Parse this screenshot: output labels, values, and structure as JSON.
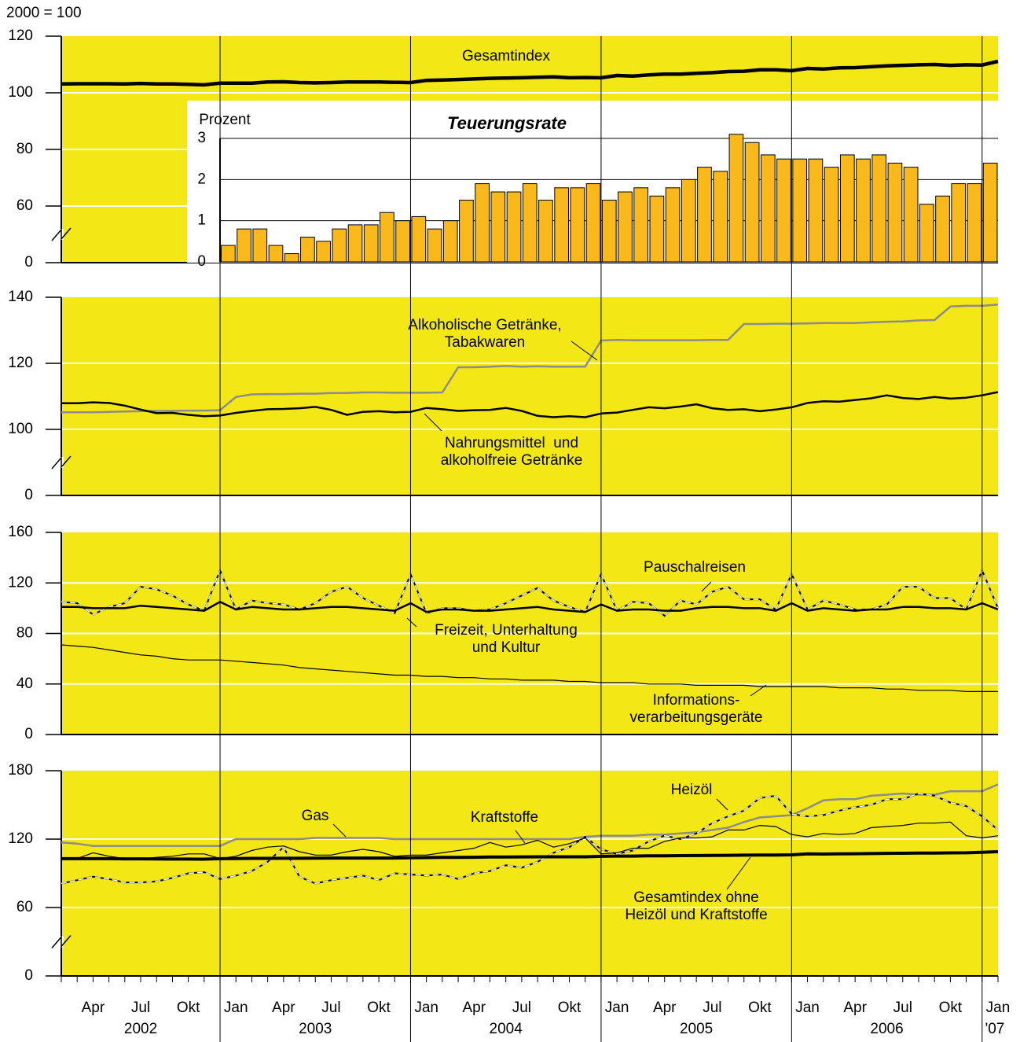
{
  "base_label": "2000 = 100",
  "x_axis": {
    "categories": [
      null,
      null,
      "Apr",
      null,
      null,
      "Jul",
      null,
      null,
      "Okt",
      null,
      null,
      "Jan",
      null,
      null,
      "Apr",
      null,
      null,
      "Jul",
      null,
      null,
      "Okt",
      null,
      null,
      "Jan",
      null,
      null,
      "Apr",
      null,
      null,
      "Jul",
      null,
      null,
      "Okt",
      null,
      null,
      "Jan",
      null,
      null,
      "Apr",
      null,
      null,
      "Jul",
      null,
      null,
      "Okt",
      null,
      null,
      "Jan",
      null,
      null,
      "Apr",
      null,
      null,
      "Jul",
      null,
      null,
      "Okt",
      null,
      null,
      "Jan"
    ],
    "years": [
      "2002",
      "2003",
      "2004",
      "2005",
      "2006",
      "'07"
    ]
  },
  "chart_data": [
    {
      "type": "line",
      "ylim": [
        60,
        120
      ],
      "yticks": [
        0,
        60,
        80,
        100,
        120
      ],
      "axis_break": true,
      "grid": true,
      "background": "#f3e716",
      "series": [
        {
          "name": "Gesamtindex",
          "color": "#000000",
          "width": 4.5,
          "style": "solid",
          "values": [
            103.1,
            103.2,
            103.2,
            103.2,
            103.1,
            103.3,
            103.1,
            103.1,
            103.0,
            102.8,
            103.4,
            103.4,
            103.4,
            103.8,
            103.9,
            103.6,
            103.5,
            103.6,
            103.8,
            103.8,
            103.8,
            103.7,
            103.6,
            104.4,
            104.5,
            104.7,
            104.9,
            105.1,
            105.2,
            105.3,
            105.5,
            105.6,
            105.3,
            105.4,
            105.3,
            106.1,
            105.9,
            106.3,
            106.6,
            106.6,
            106.9,
            107.1,
            107.5,
            107.6,
            108.1,
            108.1,
            107.8,
            108.6,
            108.4,
            108.8,
            108.9,
            109.2,
            109.5,
            109.7,
            109.9,
            110.0,
            109.7,
            109.9,
            109.8,
            111.1
          ]
        }
      ]
    },
    {
      "type": "bar",
      "title": "Teuerungsrate",
      "ylabel": "Prozent",
      "ylim": [
        0,
        3
      ],
      "yticks": [
        0,
        1,
        2,
        3
      ],
      "grid": true,
      "color": "#f9b91b",
      "values": [
        null,
        null,
        null,
        null,
        null,
        null,
        null,
        null,
        null,
        null,
        null,
        0.4,
        0.8,
        0.8,
        0.4,
        0.2,
        0.6,
        0.5,
        0.8,
        0.9,
        0.9,
        1.2,
        1.0,
        1.1,
        0.8,
        1.0,
        1.5,
        1.9,
        1.7,
        1.7,
        1.9,
        1.5,
        1.8,
        1.8,
        1.9,
        1.5,
        1.7,
        1.8,
        1.6,
        1.8,
        2.0,
        2.3,
        2.2,
        3.1,
        2.9,
        2.6,
        2.5,
        2.5,
        2.5,
        2.3,
        2.6,
        2.5,
        2.6,
        2.4,
        2.3,
        1.4,
        1.6,
        1.9,
        1.9,
        2.4
      ]
    },
    {
      "type": "line",
      "ylim": [
        100,
        140
      ],
      "yticks": [
        0,
        100,
        120,
        140
      ],
      "axis_break": true,
      "grid": true,
      "background": "#f3e716",
      "series": [
        {
          "name": "Alkoholische Getränke,\nTabakwaren",
          "color": "#8c8c8c",
          "width": 2.5,
          "style": "solid",
          "values": [
            105.2,
            105.2,
            105.2,
            105.3,
            105.4,
            105.5,
            105.6,
            105.6,
            105.7,
            105.7,
            105.8,
            109.8,
            110.6,
            110.7,
            110.7,
            110.8,
            110.8,
            111.0,
            111.0,
            111.2,
            111.2,
            111.1,
            111.1,
            111.1,
            111.2,
            118.8,
            118.8,
            119.0,
            119.2,
            119.0,
            119.1,
            119.0,
            119.0,
            119.0,
            126.9,
            127.1,
            127.0,
            127.0,
            127.0,
            127.0,
            127.0,
            127.1,
            127.1,
            131.9,
            131.9,
            132.0,
            132.0,
            132.1,
            132.2,
            132.2,
            132.2,
            132.4,
            132.6,
            132.7,
            133.0,
            133.1,
            137.2,
            137.4,
            137.4,
            137.8
          ]
        },
        {
          "name": "Nahrungsmittel  und\nalkoholfreie Getränke",
          "color": "#000000",
          "width": 2.5,
          "style": "solid",
          "values": [
            107.9,
            107.9,
            108.2,
            108.0,
            107.2,
            106.0,
            104.9,
            105.0,
            104.4,
            104.0,
            104.2,
            105.0,
            105.6,
            106.1,
            106.2,
            106.4,
            106.8,
            105.9,
            104.4,
            105.3,
            105.5,
            105.2,
            105.3,
            106.5,
            106.1,
            105.6,
            105.8,
            105.9,
            106.5,
            105.6,
            104.1,
            103.7,
            104.0,
            103.7,
            104.8,
            105.1,
            105.9,
            106.7,
            106.4,
            106.9,
            107.6,
            106.4,
            105.9,
            106.1,
            105.5,
            106.0,
            106.7,
            108.0,
            108.5,
            108.4,
            108.9,
            109.4,
            110.3,
            109.5,
            109.2,
            109.8,
            109.3,
            109.6,
            110.3,
            111.3
          ]
        }
      ]
    },
    {
      "type": "line",
      "ylim": [
        0,
        160
      ],
      "yticks": [
        0,
        40,
        80,
        120,
        160
      ],
      "axis_break": false,
      "grid": true,
      "background": "#f3e716",
      "series": [
        {
          "name": "Pauschalreisen",
          "color": "#ffffff",
          "width": 1.5,
          "style": "dashed",
          "values": [
            105,
            104,
            95,
            101,
            104,
            117,
            115,
            110,
            103,
            98,
            130,
            99,
            106,
            104,
            103,
            99,
            104,
            113,
            117,
            108,
            102,
            96,
            127,
            96,
            100,
            100,
            98,
            99,
            104,
            110,
            116,
            106,
            101,
            97,
            127,
            98,
            105,
            104,
            94,
            106,
            103,
            113,
            117,
            107,
            107,
            99,
            127,
            99,
            106,
            103,
            99,
            99,
            103,
            117,
            117,
            108,
            108,
            99,
            130,
            100
          ]
        },
        {
          "name": "Freizeit, Unterhaltung\nund Kultur",
          "color": "#000000",
          "width": 2.5,
          "style": "solid",
          "values": [
            101,
            101,
            100,
            100,
            100,
            102,
            101,
            100,
            99,
            98,
            105,
            99,
            101,
            100,
            99,
            99,
            100,
            101,
            101,
            100,
            99,
            98,
            104,
            97,
            99,
            99,
            98,
            98,
            99,
            100,
            101,
            99,
            98,
            97,
            103,
            98,
            99,
            99,
            98,
            98,
            100,
            101,
            101,
            100,
            100,
            98,
            104,
            98,
            100,
            99,
            98,
            99,
            99,
            101,
            101,
            100,
            100,
            99,
            104,
            99
          ]
        },
        {
          "name": "Informations-\nverarbeitungsgeräte",
          "color": "#000000",
          "width": 1.2,
          "style": "solid",
          "values": [
            71,
            70,
            69,
            67,
            65,
            63,
            62,
            60,
            59,
            59,
            59,
            58,
            57,
            56,
            55,
            53,
            52,
            51,
            50,
            49,
            48,
            47,
            47,
            46,
            46,
            45,
            45,
            44,
            44,
            43,
            43,
            43,
            42,
            42,
            41,
            41,
            41,
            40,
            40,
            40,
            39,
            39,
            39,
            39,
            38,
            38,
            38,
            38,
            38,
            37,
            37,
            37,
            36,
            36,
            35,
            35,
            35,
            34,
            34,
            34
          ]
        }
      ]
    },
    {
      "type": "line",
      "ylim": [
        60,
        180
      ],
      "yticks": [
        0,
        60,
        120,
        180
      ],
      "axis_break": true,
      "grid": true,
      "background": "#f3e716",
      "series": [
        {
          "name": "Gas",
          "color": "#8c8c8c",
          "width": 2.5,
          "style": "solid",
          "values": [
            117,
            116,
            114,
            114,
            114,
            114,
            114,
            114,
            114,
            114,
            114,
            120,
            120,
            120,
            120,
            120,
            121,
            121,
            121,
            121,
            121,
            120,
            120,
            120,
            120,
            120,
            120,
            120,
            120,
            120,
            120,
            120,
            120,
            122,
            123,
            123,
            123,
            124,
            124,
            125,
            126,
            128,
            130,
            135,
            139,
            140,
            141,
            147,
            154,
            155,
            155,
            158,
            159,
            160,
            159,
            159,
            162,
            162,
            162,
            168
          ]
        },
        {
          "name": "Heizöl",
          "color": "#ffffff",
          "width": 1.5,
          "style": "dashed",
          "values": [
            81,
            84,
            87,
            85,
            82,
            82,
            83,
            86,
            90,
            91,
            85,
            88,
            92,
            100,
            113,
            87,
            81,
            84,
            86,
            88,
            84,
            90,
            89,
            88,
            89,
            85,
            90,
            92,
            97,
            95,
            100,
            108,
            113,
            122,
            111,
            107,
            110,
            118,
            123,
            120,
            125,
            134,
            140,
            145,
            156,
            158,
            142,
            140,
            141,
            145,
            148,
            150,
            155,
            155,
            160,
            158,
            152,
            149,
            140,
            128
          ]
        },
        {
          "name": "Kraftstoffe",
          "color": "#000000",
          "width": 1.2,
          "style": "solid",
          "values": [
            102,
            103,
            108,
            105,
            103,
            103,
            104,
            105,
            107,
            107,
            103,
            105,
            110,
            113,
            114,
            109,
            106,
            106,
            109,
            111,
            109,
            105,
            106,
            106,
            108,
            110,
            112,
            117,
            113,
            115,
            119,
            113,
            116,
            121,
            107,
            108,
            112,
            112,
            118,
            121,
            121,
            122,
            128,
            128,
            132,
            131,
            124,
            122,
            125,
            124,
            125,
            130,
            131,
            132,
            134,
            134,
            135,
            123,
            121,
            123
          ]
        },
        {
          "name": "Gesamtindex ohne\nHeizöl und Kraftstoffe",
          "color": "#000000",
          "width": 4,
          "style": "solid",
          "values": [
            102.8,
            102.8,
            102.8,
            102.8,
            102.7,
            102.7,
            102.6,
            102.5,
            102.5,
            102.4,
            102.8,
            103.0,
            103.1,
            103.1,
            103.2,
            103.2,
            103.3,
            103.4,
            103.4,
            103.4,
            103.4,
            103.4,
            103.6,
            103.8,
            103.9,
            104.0,
            104.1,
            104.3,
            104.3,
            104.4,
            104.5,
            104.5,
            104.5,
            104.5,
            104.9,
            105.1,
            105.1,
            105.3,
            105.4,
            105.5,
            105.6,
            105.7,
            105.8,
            105.9,
            106.0,
            106.0,
            106.2,
            107.0,
            106.9,
            107.1,
            107.2,
            107.3,
            107.5,
            107.6,
            107.7,
            107.8,
            107.9,
            108.0,
            108.4,
            109.0
          ]
        }
      ]
    }
  ]
}
